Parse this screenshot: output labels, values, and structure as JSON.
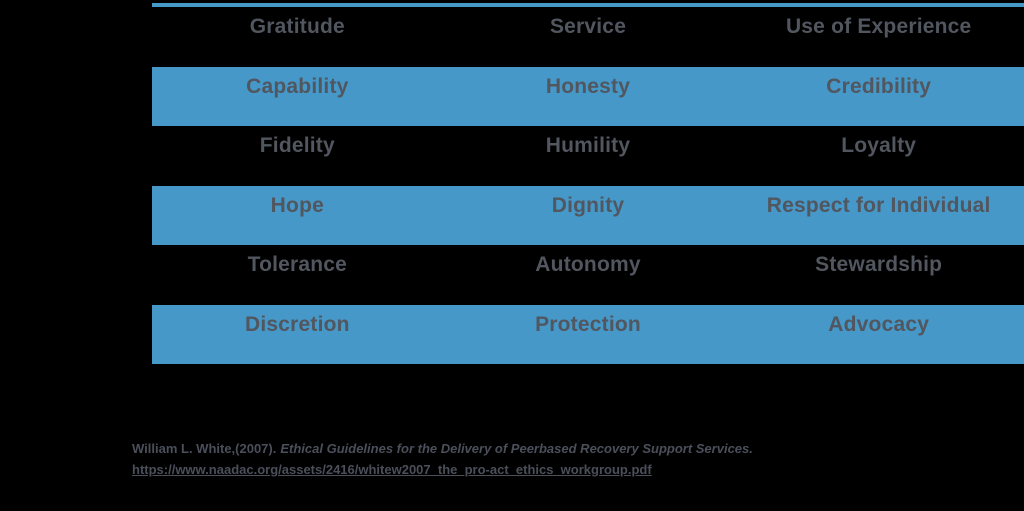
{
  "colors": {
    "accent_blue": "#4598C8",
    "row_text": "#51565F",
    "citation_text": "#4A4F5A",
    "background": "#000000"
  },
  "table": {
    "rows": [
      {
        "cells": [
          "Gratitude",
          "Service",
          "Use of Experience"
        ]
      },
      {
        "cells": [
          "Capability",
          "Honesty",
          "Credibility"
        ]
      },
      {
        "cells": [
          "Fidelity",
          "Humility",
          "Loyalty"
        ]
      },
      {
        "cells": [
          "Hope",
          "Dignity",
          "Respect for Individual"
        ]
      },
      {
        "cells": [
          "Tolerance",
          "Autonomy",
          "Stewardship"
        ]
      },
      {
        "cells": [
          "Discretion",
          "Protection",
          "Advocacy"
        ]
      }
    ]
  },
  "citation": {
    "author": "William L. White,(2007).",
    "title": "Ethical Guidelines for the Delivery of Peerbased Recovery Support Services.",
    "url": "https://www.naadac.org/assets/2416/whitew2007_the_pro-act_ethics_workgroup.pdf"
  }
}
